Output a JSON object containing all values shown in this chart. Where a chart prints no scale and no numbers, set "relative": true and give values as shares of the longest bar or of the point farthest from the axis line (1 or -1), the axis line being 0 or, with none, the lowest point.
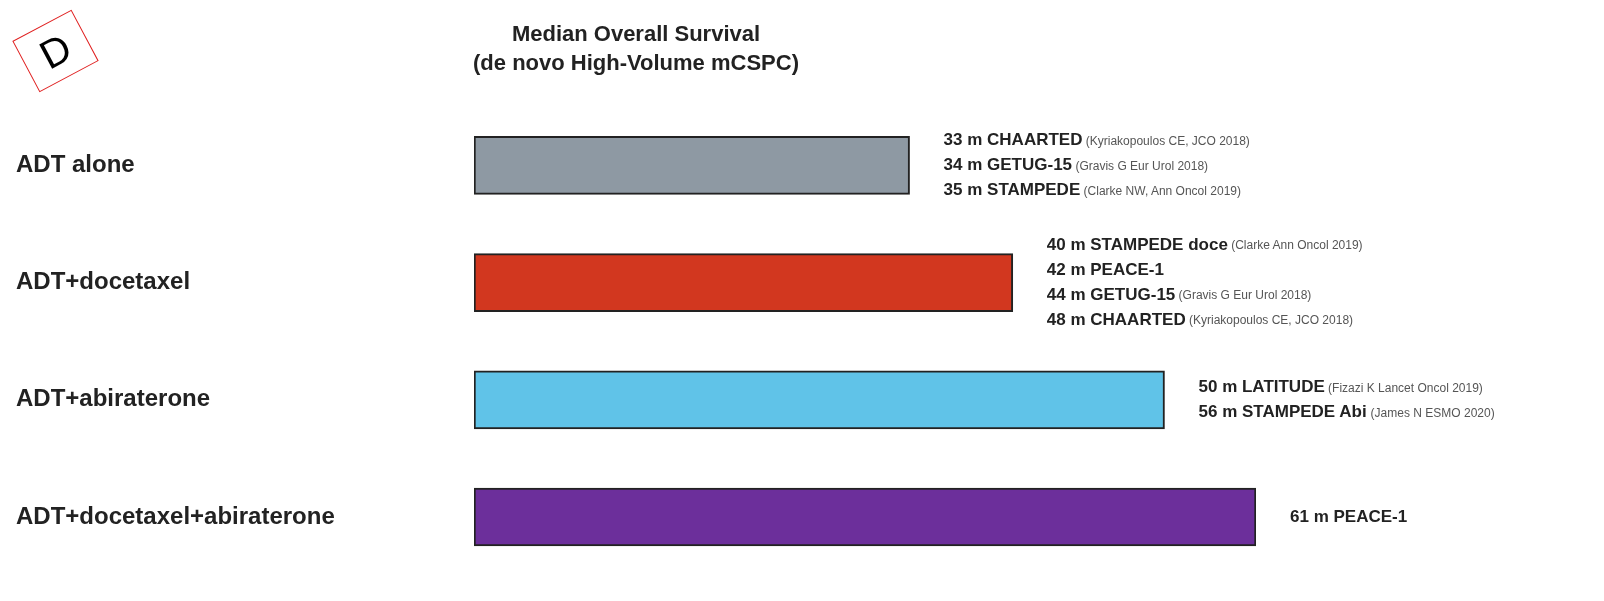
{
  "chart_data": {
    "type": "bar",
    "orientation": "horizontal",
    "relative": true,
    "title": "Median Overall Survival",
    "subtitle": "(de novo High-Volume mCSPC)",
    "categories": [
      "ADT alone",
      "ADT+docetaxel",
      "ADT+abiraterone",
      "ADT+docetaxel+abiraterone"
    ],
    "values": [
      0.557,
      0.689,
      0.883,
      1
    ],
    "colors": [
      "#8e99a3",
      "#d2371f",
      "#60c3e8",
      "#6c2f9b"
    ],
    "grid": false,
    "legend": false,
    "annotations": [
      "D",
      {
        "text": "33 m CHAARTED (Kyriakopoulos CE, JCO 2018)",
        "x": 0.557,
        "y": "ADT alone"
      },
      {
        "text": "34 m GETUG-15 (Gravis G Eur Urol 2018)",
        "x": 0.557,
        "y": "ADT alone"
      },
      {
        "text": "35 m STAMPEDE (Clarke NW, Ann Oncol 2019)",
        "x": 0.557,
        "y": "ADT alone"
      },
      {
        "text": "40 m STAMPEDE doce (Clarke Ann Oncol 2019)",
        "x": 0.689,
        "y": "ADT+docetaxel"
      },
      {
        "text": "42 m PEACE-1",
        "x": 0.689,
        "y": "ADT+docetaxel"
      },
      {
        "text": "44 m GETUG-15 (Gravis G Eur Urol 2018)",
        "x": 0.689,
        "y": "ADT+docetaxel"
      },
      {
        "text": "48 m CHAARTED (Kyriakopoulos CE, JCO 2018)",
        "x": 0.689,
        "y": "ADT+docetaxel"
      },
      {
        "text": "50 m LATITUDE (Fizazi K Lancet Oncol 2019)",
        "x": 0.883,
        "y": "ADT+abiraterone"
      },
      {
        "text": "56 m STAMPEDE Abi (James N ESMO 2020)",
        "x": 0.883,
        "y": "ADT+abiraterone"
      },
      {
        "text": "61 m PEACE-1",
        "x": 1,
        "y": "ADT+docetaxel+abiraterone"
      }
    ]
  }
}
